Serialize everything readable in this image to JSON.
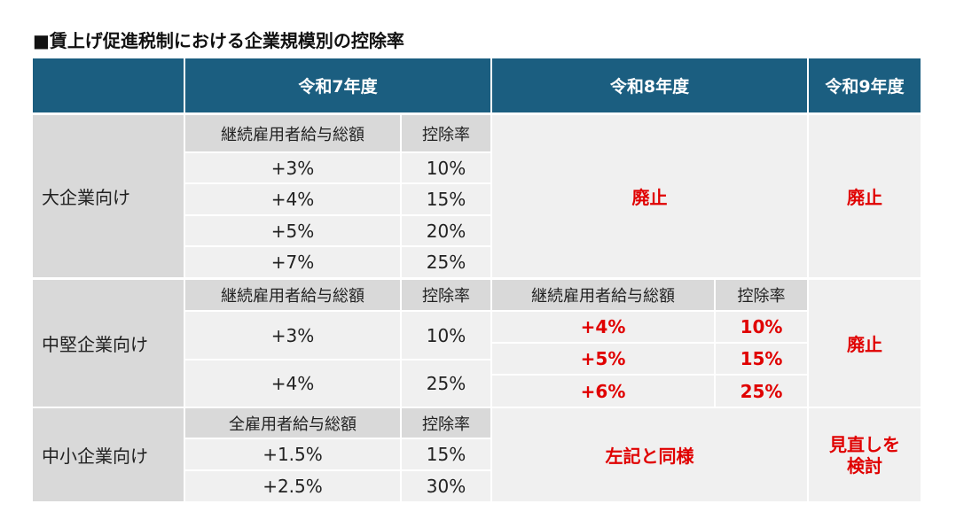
{
  "title": "■賃上げ促進税制における企業規模別の控除率",
  "header": {
    "blank": "",
    "r7": "令和7年度",
    "r8": "令和8年度",
    "r9": "令和9年度"
  },
  "large": {
    "label": "大企業向け",
    "col_amount": "継続雇用者給与総額",
    "col_rate": "控除率",
    "rows": [
      [
        "+3%",
        "10%"
      ],
      [
        "+4%",
        "15%"
      ],
      [
        "+5%",
        "20%"
      ],
      [
        "+7%",
        "25%"
      ]
    ],
    "r8": "廃止",
    "r9": "廃止"
  },
  "mid": {
    "label": "中堅企業向け",
    "col_amount": "継続雇用者給与総額",
    "col_rate": "控除率",
    "rows": [
      [
        "+3%",
        "10%"
      ],
      [
        "+4%",
        "25%"
      ]
    ],
    "r8_col_amount": "継続雇用者給与総額",
    "r8_col_rate": "控除率",
    "r8_rows": [
      [
        "+4%",
        "10%"
      ],
      [
        "+5%",
        "15%"
      ],
      [
        "+6%",
        "25%"
      ]
    ],
    "r9": "廃止"
  },
  "small": {
    "label": "中小企業向け",
    "col_amount": "全雇用者給与総額",
    "col_rate": "控除率",
    "rows": [
      [
        "+1.5%",
        "15%"
      ],
      [
        "+2.5%",
        "30%"
      ]
    ],
    "r8": "左記と同様",
    "r9_line1": "見直しを",
    "r9_line2": "検討"
  },
  "colors": {
    "header": "#1b5e80",
    "emphasis": "#e00000",
    "label_bg": "#d9d9d9",
    "cell_bg": "#f0f0f0"
  }
}
